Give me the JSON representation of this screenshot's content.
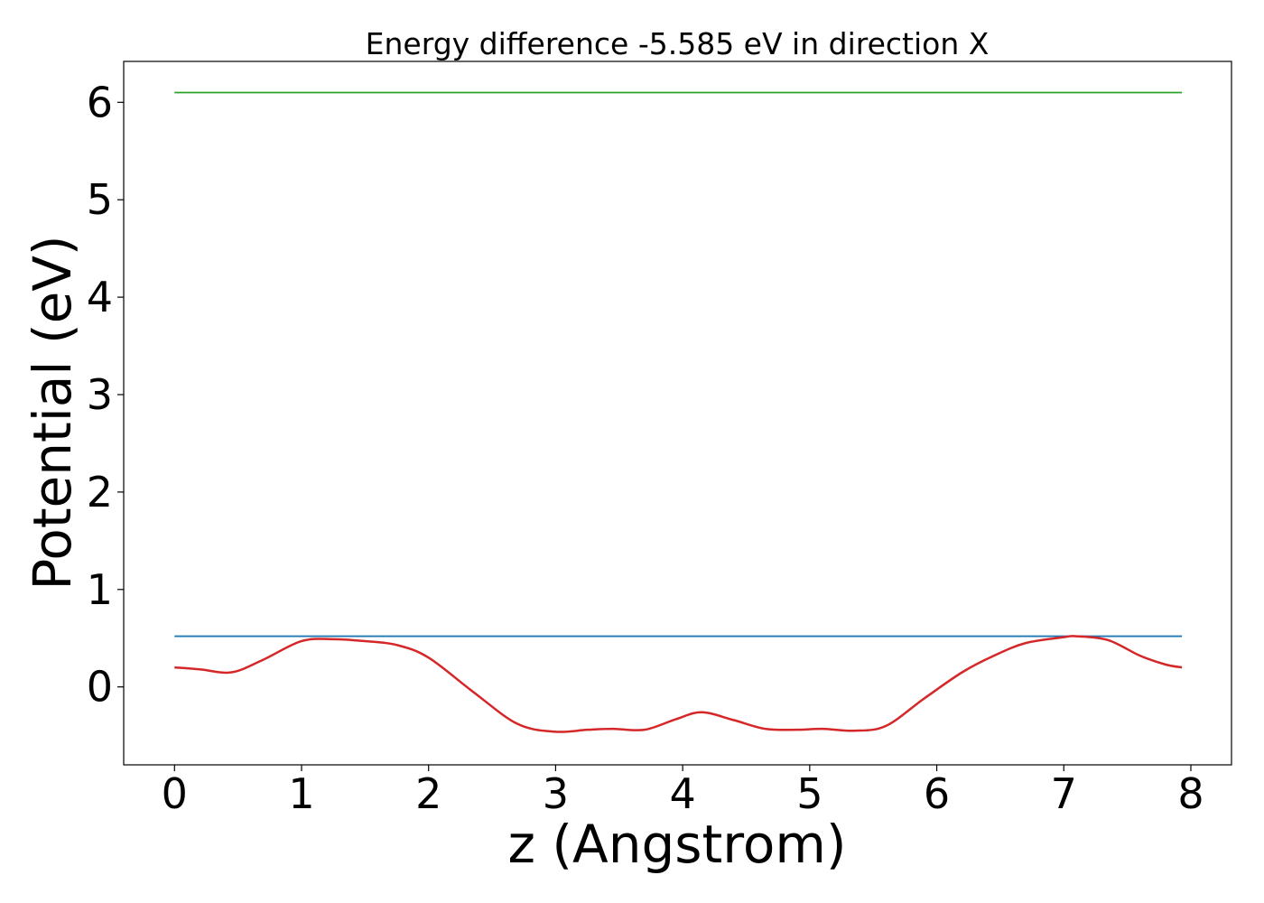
{
  "chart_data": {
    "type": "line",
    "title": "Energy difference -5.585 eV in direction X",
    "xlabel": "z (Angstrom)",
    "ylabel": "Potential (eV)",
    "xlim": [
      -0.4,
      8.32
    ],
    "ylim": [
      -0.8,
      6.42
    ],
    "xticks": [
      0,
      1,
      2,
      3,
      4,
      5,
      6,
      7,
      8
    ],
    "yticks": [
      0,
      1,
      2,
      3,
      4,
      5,
      6
    ],
    "grid": false,
    "legend": "none",
    "series": [
      {
        "color": "#2ca02c",
        "x": [
          0,
          7.93
        ],
        "y": [
          6.1,
          6.1
        ]
      },
      {
        "color": "#1f77b4",
        "x": [
          0,
          7.93
        ],
        "y": [
          0.52,
          0.52
        ]
      },
      {
        "color": "#d62728",
        "x": [
          0,
          0.2,
          0.45,
          0.7,
          1.0,
          1.25,
          1.5,
          1.75,
          2.0,
          2.35,
          2.7,
          3.0,
          3.25,
          3.45,
          3.7,
          3.95,
          4.15,
          4.4,
          4.65,
          4.9,
          5.1,
          5.35,
          5.6,
          5.9,
          6.2,
          6.45,
          6.7,
          7.0,
          7.1,
          7.35,
          7.6,
          7.8,
          7.93
        ],
        "y": [
          0.2,
          0.18,
          0.15,
          0.28,
          0.47,
          0.49,
          0.47,
          0.43,
          0.3,
          -0.05,
          -0.38,
          -0.46,
          -0.44,
          -0.43,
          -0.44,
          -0.33,
          -0.26,
          -0.34,
          -0.43,
          -0.44,
          -0.43,
          -0.45,
          -0.4,
          -0.12,
          0.15,
          0.32,
          0.45,
          0.51,
          0.52,
          0.48,
          0.32,
          0.23,
          0.2
        ]
      }
    ]
  }
}
